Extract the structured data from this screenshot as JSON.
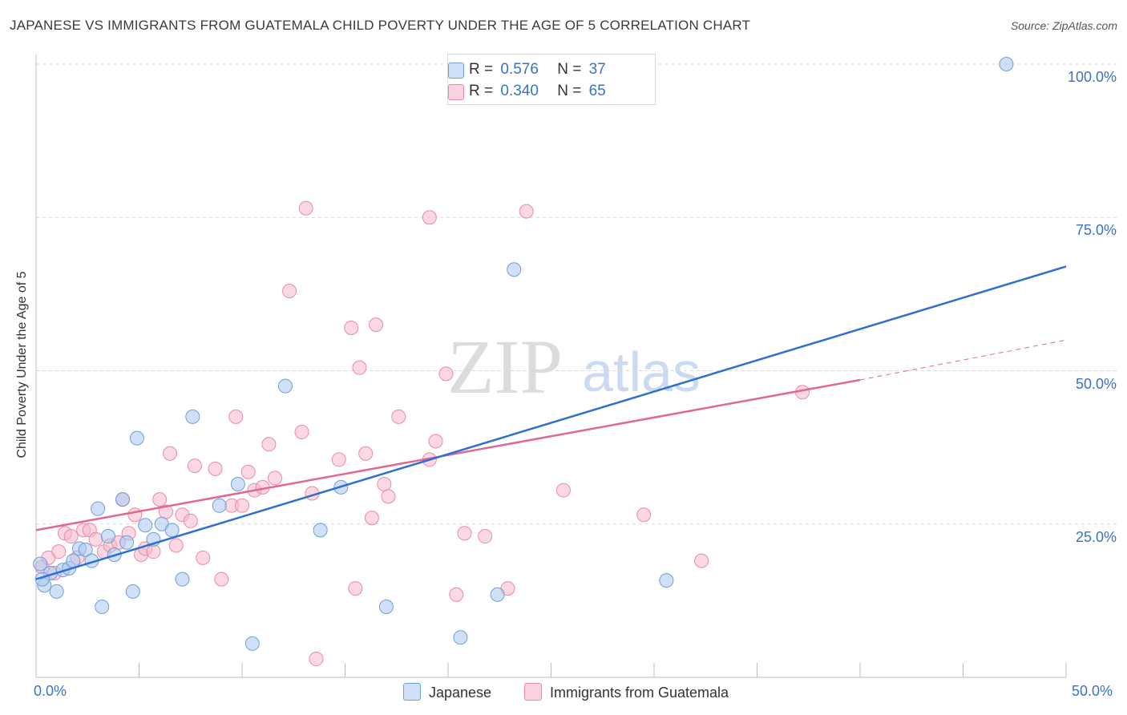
{
  "header": {
    "title": "JAPANESE VS IMMIGRANTS FROM GUATEMALA CHILD POVERTY UNDER THE AGE OF 5 CORRELATION CHART",
    "source": "Source: ZipAtlas.com"
  },
  "watermark": {
    "zip": "ZIP",
    "atlas": "atlas"
  },
  "legend_top": {
    "rows": [
      {
        "r_label": "R =",
        "r_value": "0.576",
        "n_label": "N =",
        "n_value": "37",
        "color": "#a9c8f0"
      },
      {
        "r_label": "R =",
        "r_value": "0.340",
        "n_label": "N =",
        "n_value": "65",
        "color": "#f7b8cb"
      }
    ]
  },
  "colors": {
    "japanese_fill": "#a9c8f0",
    "japanese_stroke": "#6f9fd8",
    "japanese_line": "#2f6fcf",
    "guatemala_fill": "#f7b8cb",
    "guatemala_stroke": "#e98aa8",
    "guatemala_line": "#e06891",
    "tick_text": "#3a72c7"
  },
  "chart_data": {
    "type": "scatter",
    "title": "JAPANESE VS IMMIGRANTS FROM GUATEMALA CHILD POVERTY UNDER THE AGE OF 5 CORRELATION CHART",
    "xlabel": "",
    "ylabel": "Child Poverty Under the Age of 5",
    "xlim": [
      0,
      50
    ],
    "ylim": [
      0,
      100
    ],
    "x_tick_labels": [
      "0.0%",
      "50.0%"
    ],
    "y_tick_labels": [
      "25.0%",
      "50.0%",
      "75.0%",
      "100.0%"
    ],
    "y_ticks": [
      25,
      50,
      75,
      100
    ],
    "grid": true,
    "legend_position": "bottom",
    "series": [
      {
        "name": "Japanese",
        "points": [
          [
            0.2,
            18.5
          ],
          [
            0.4,
            15.0
          ],
          [
            0.7,
            17.0
          ],
          [
            1.0,
            14.0
          ],
          [
            1.3,
            17.5
          ],
          [
            1.6,
            17.8
          ],
          [
            1.8,
            19.0
          ],
          [
            2.1,
            21.0
          ],
          [
            2.4,
            20.8
          ],
          [
            2.7,
            19.0
          ],
          [
            3.0,
            27.5
          ],
          [
            3.2,
            11.5
          ],
          [
            3.5,
            23.0
          ],
          [
            3.8,
            20.0
          ],
          [
            4.2,
            29.0
          ],
          [
            4.4,
            22.0
          ],
          [
            4.7,
            14.0
          ],
          [
            4.9,
            39.0
          ],
          [
            5.3,
            24.8
          ],
          [
            5.7,
            22.5
          ],
          [
            6.1,
            25.0
          ],
          [
            6.6,
            24.0
          ],
          [
            7.1,
            16.0
          ],
          [
            7.6,
            42.5
          ],
          [
            8.9,
            28.0
          ],
          [
            9.8,
            31.5
          ],
          [
            10.5,
            5.5
          ],
          [
            12.1,
            47.5
          ],
          [
            13.8,
            24.0
          ],
          [
            14.8,
            31.0
          ],
          [
            17.0,
            11.5
          ],
          [
            20.6,
            6.5
          ],
          [
            22.4,
            13.5
          ],
          [
            23.2,
            66.5
          ],
          [
            30.6,
            15.8
          ],
          [
            47.1,
            100.0
          ],
          [
            0.3,
            16.0
          ]
        ],
        "trend": [
          [
            0,
            16.0
          ],
          [
            50,
            67.0
          ]
        ]
      },
      {
        "name": "Immigrants from Guatemala",
        "points": [
          [
            0.3,
            18.0
          ],
          [
            0.6,
            19.5
          ],
          [
            0.9,
            17.0
          ],
          [
            1.1,
            20.5
          ],
          [
            1.4,
            23.5
          ],
          [
            1.7,
            23.0
          ],
          [
            2.0,
            19.5
          ],
          [
            2.3,
            24.0
          ],
          [
            2.6,
            24.0
          ],
          [
            2.9,
            22.5
          ],
          [
            3.3,
            20.5
          ],
          [
            3.6,
            21.5
          ],
          [
            4.0,
            22.0
          ],
          [
            4.2,
            29.0
          ],
          [
            4.5,
            23.5
          ],
          [
            4.8,
            26.5
          ],
          [
            5.1,
            20.0
          ],
          [
            5.3,
            21.0
          ],
          [
            5.7,
            20.5
          ],
          [
            6.0,
            29.0
          ],
          [
            6.3,
            27.0
          ],
          [
            6.5,
            36.5
          ],
          [
            6.8,
            21.5
          ],
          [
            7.1,
            26.5
          ],
          [
            7.5,
            25.5
          ],
          [
            7.7,
            34.5
          ],
          [
            8.1,
            19.5
          ],
          [
            8.7,
            34.0
          ],
          [
            9.0,
            16.0
          ],
          [
            9.5,
            28.0
          ],
          [
            9.7,
            42.5
          ],
          [
            10.0,
            28.0
          ],
          [
            10.3,
            33.5
          ],
          [
            10.6,
            30.5
          ],
          [
            11.0,
            31.0
          ],
          [
            11.3,
            38.0
          ],
          [
            11.6,
            32.5
          ],
          [
            12.3,
            63.0
          ],
          [
            12.9,
            40.0
          ],
          [
            13.1,
            76.5
          ],
          [
            13.4,
            30.0
          ],
          [
            13.6,
            3.0
          ],
          [
            14.7,
            35.5
          ],
          [
            15.3,
            57.0
          ],
          [
            15.5,
            14.5
          ],
          [
            15.7,
            50.5
          ],
          [
            16.0,
            36.5
          ],
          [
            16.3,
            26.0
          ],
          [
            16.5,
            57.5
          ],
          [
            16.9,
            31.5
          ],
          [
            17.1,
            29.5
          ],
          [
            17.6,
            42.5
          ],
          [
            19.1,
            75.0
          ],
          [
            19.1,
            35.5
          ],
          [
            19.4,
            38.5
          ],
          [
            19.9,
            49.5
          ],
          [
            20.4,
            13.5
          ],
          [
            20.8,
            23.5
          ],
          [
            21.8,
            23.0
          ],
          [
            22.9,
            14.5
          ],
          [
            23.8,
            76.0
          ],
          [
            25.6,
            30.5
          ],
          [
            29.5,
            26.5
          ],
          [
            32.3,
            19.0
          ],
          [
            37.2,
            46.5
          ]
        ],
        "trend": [
          [
            0,
            24.0
          ],
          [
            40,
            48.5
          ]
        ],
        "trend_extension": [
          [
            40,
            48.5
          ],
          [
            50,
            55.0
          ]
        ]
      }
    ]
  },
  "bottom_legend": {
    "items": [
      {
        "label": "Japanese",
        "color": "#a9c8f0"
      },
      {
        "label": "Immigrants from Guatemala",
        "color": "#f7b8cb"
      }
    ]
  }
}
